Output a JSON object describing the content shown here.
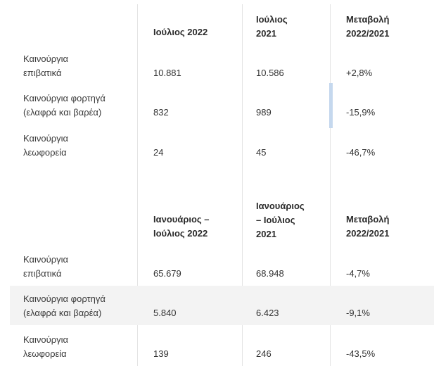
{
  "table1": {
    "headers": [
      "Ιούλιος 2022",
      "Ιούλιος\n2021",
      "Μεταβολή\n2022/2021"
    ],
    "rows": [
      {
        "label": "Καινούργια\nεπιβατικά",
        "values": [
          "10.881",
          "10.586",
          "+2,8%"
        ]
      },
      {
        "label": "Καινούργια φορτηγά\n(ελαφρά και βαρέα)",
        "values": [
          "832",
          "989",
          "-15,9%"
        ]
      },
      {
        "label": "Καινούργια\nλεωφορεία",
        "values": [
          "24",
          "45",
          "-46,7%"
        ]
      }
    ]
  },
  "table2": {
    "headers": [
      "Ιανουάριος –\nΙούλιος 2022",
      "Ιανουάριος\n– Ιούλιος\n2021",
      "Μεταβολή\n2022/2021"
    ],
    "rows": [
      {
        "label": "Καινούργια\nεπιβατικά",
        "values": [
          "65.679",
          "68.948",
          "-4,7%"
        ]
      },
      {
        "label": "Καινούργια φορτηγά\n(ελαφρά και βαρέα)",
        "values": [
          "5.840",
          "6.423",
          "-9,1%"
        ]
      },
      {
        "label": "Καινούργια\nλεωφορεία",
        "values": [
          "139",
          "246",
          "-43,5%"
        ]
      }
    ]
  }
}
